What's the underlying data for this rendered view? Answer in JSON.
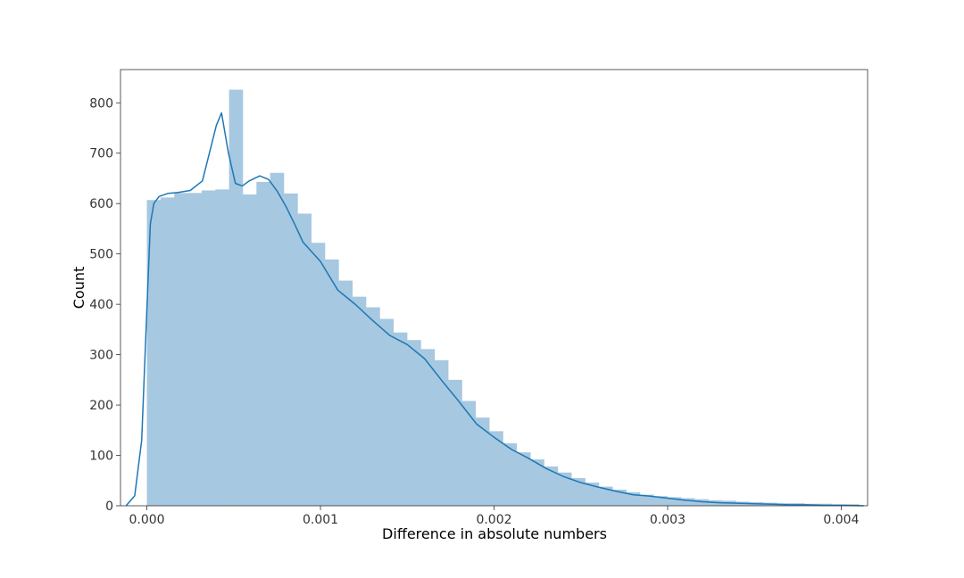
{
  "chart_data": {
    "type": "bar",
    "subtype": "histogram-with-kde",
    "title": "",
    "xlabel": "Difference in absolute numbers",
    "ylabel": "Count",
    "xlim": [
      -0.000152,
      0.004152
    ],
    "ylim": [
      0,
      866
    ],
    "x_ticks": [
      0.0,
      0.001,
      0.002,
      0.003,
      0.004
    ],
    "x_tick_labels": [
      "0.000",
      "0.001",
      "0.002",
      "0.003",
      "0.004"
    ],
    "y_ticks": [
      0,
      100,
      200,
      300,
      400,
      500,
      600,
      700,
      800
    ],
    "y_tick_labels": [
      "0",
      "100",
      "200",
      "300",
      "400",
      "500",
      "600",
      "700",
      "800"
    ],
    "grid": false,
    "bar_color": "#a6c8e0",
    "line_color": "#1f77b4",
    "bins": {
      "start": 0.0,
      "width": 7.89e-05,
      "counts": [
        607,
        612,
        621,
        621,
        626,
        628,
        826,
        618,
        643,
        661,
        620,
        580,
        522,
        489,
        447,
        415,
        394,
        371,
        344,
        329,
        311,
        289,
        250,
        208,
        175,
        148,
        124,
        106,
        92,
        78,
        66,
        55,
        46,
        38,
        32,
        27,
        22,
        19,
        17,
        15,
        13,
        11,
        10,
        8,
        7,
        6,
        5,
        5,
        4,
        4,
        3,
        3
      ]
    },
    "kde": {
      "x": [
        -0.00012,
        -7e-05,
        -3e-05,
        0.0,
        2e-05,
        4e-05,
        7e-05,
        0.00012,
        0.00018,
        0.00025,
        0.00032,
        0.00036,
        0.0004,
        0.00043,
        0.00047,
        0.00051,
        0.00055,
        0.00059,
        0.00065,
        0.0007,
        0.00075,
        0.0008,
        0.00085,
        0.0009,
        0.001,
        0.0011,
        0.0012,
        0.0013,
        0.0014,
        0.0015,
        0.0016,
        0.0017,
        0.0018,
        0.0019,
        0.002,
        0.0021,
        0.0022,
        0.0023,
        0.0024,
        0.0025,
        0.0026,
        0.0027,
        0.0028,
        0.0029,
        0.003,
        0.0031,
        0.0032,
        0.0033,
        0.0034,
        0.0035,
        0.0036,
        0.0037,
        0.0038,
        0.0039,
        0.004,
        0.00413
      ],
      "y": [
        0,
        20,
        130,
        390,
        560,
        600,
        614,
        620,
        622,
        626,
        645,
        700,
        755,
        780,
        700,
        640,
        635,
        645,
        655,
        648,
        625,
        595,
        560,
        523,
        485,
        428,
        400,
        368,
        338,
        320,
        292,
        248,
        206,
        162,
        136,
        112,
        94,
        74,
        58,
        46,
        37,
        29,
        22,
        19,
        15,
        11,
        8,
        6,
        5,
        4,
        3,
        2,
        2,
        1,
        1,
        0
      ]
    }
  }
}
